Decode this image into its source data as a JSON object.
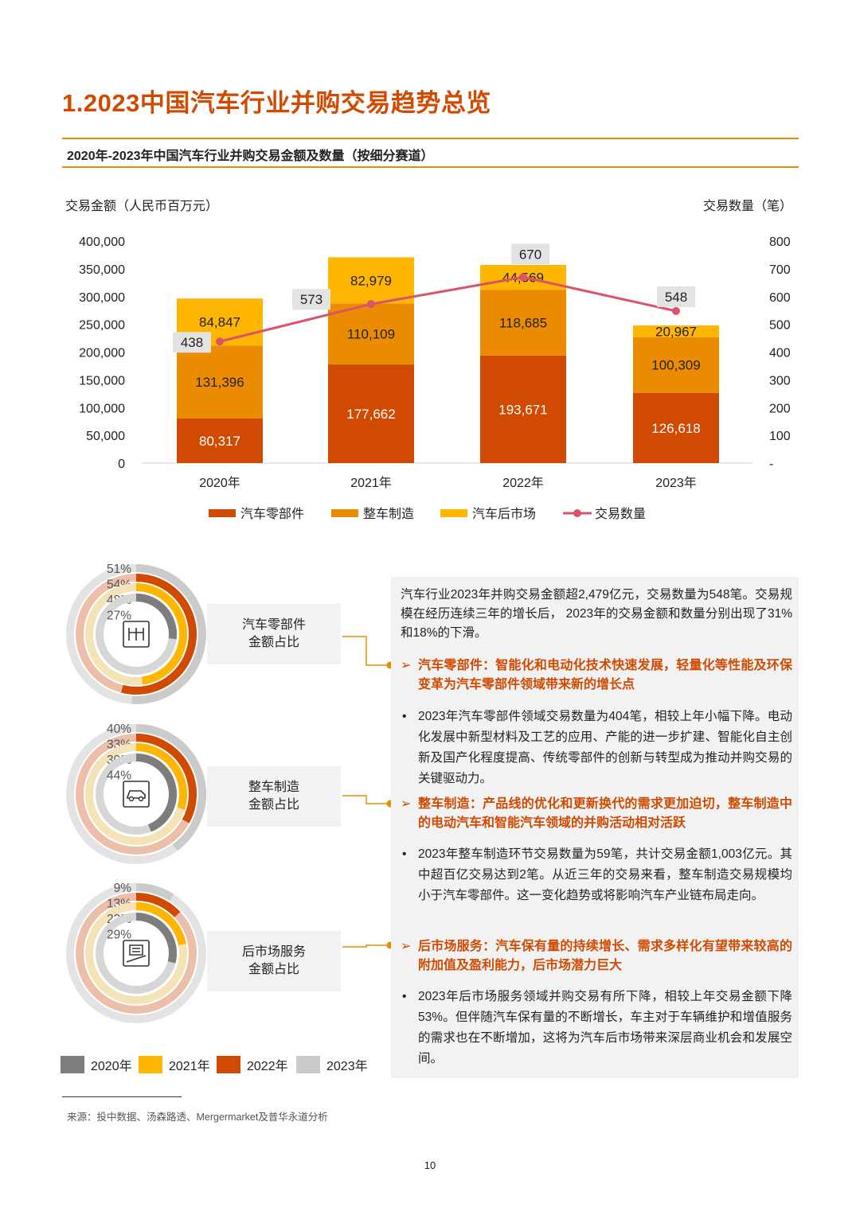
{
  "page": {
    "title": "1.2023中国汽车行业并购交易趋势总览",
    "subtitle": "2020年-2023年中国汽车行业并购交易金额及数量（按细分赛道）",
    "source": "来源：投中数据、汤森路透、Mergermarket及普华永道分析",
    "page_number": "10"
  },
  "colors": {
    "accent": "#d04a02",
    "rule": "#eb8c00",
    "parts": "#d04a02",
    "vehicle": "#eb8c00",
    "aftermarket": "#ffb600",
    "count_line": "#db536a",
    "y2020": "#7d7d7d",
    "y2021": "#ffb600",
    "y2022": "#d04a02",
    "y2023": "#cbcbcb"
  },
  "chart_data": [
    {
      "type": "bar",
      "stacked": true,
      "title": "2020年-2023年中国汽车行业并购交易金额及数量（按细分赛道）",
      "ylabel": "交易金额（人民币百万元）",
      "y2label": "交易数量（笔）",
      "categories": [
        "2020年",
        "2021年",
        "2022年",
        "2023年"
      ],
      "ylim": [
        0,
        400000
      ],
      "yticks": [
        "400,000",
        "350,000",
        "300,000",
        "250,000",
        "200,000",
        "150,000",
        "100,000",
        "50,000",
        "0"
      ],
      "y2lim": [
        0,
        800
      ],
      "y2ticks": [
        "800",
        "700",
        "600",
        "500",
        "400",
        "300",
        "200",
        "100",
        "-"
      ],
      "series": [
        {
          "name": "汽车零部件",
          "values": [
            80317,
            177662,
            193671,
            126618
          ],
          "labels": [
            "80,317",
            "177,662",
            "193,671",
            "126,618"
          ]
        },
        {
          "name": "整车制造",
          "values": [
            131396,
            110109,
            118685,
            100309
          ],
          "labels": [
            "131,396",
            "110,109",
            "118,685",
            "100,309"
          ]
        },
        {
          "name": "汽车后市场",
          "values": [
            84847,
            82979,
            44569,
            20967
          ],
          "labels": [
            "84,847",
            "82,979",
            "44,569",
            "20,967"
          ]
        },
        {
          "name": "交易数量",
          "type": "line",
          "axis": "right",
          "values": [
            438,
            573,
            670,
            548
          ],
          "labels": [
            "438",
            "573",
            "670",
            "548"
          ]
        }
      ],
      "legend": [
        "汽车零部件",
        "整车制造",
        "汽车后市场",
        "交易数量"
      ],
      "legend_position": "bottom"
    },
    {
      "type": "pie",
      "variant": "concentric-donut",
      "title": "汽车零部件金额占比",
      "rings": [
        "2023年",
        "2022年",
        "2021年",
        "2020年"
      ],
      "values": [
        51,
        54,
        48,
        27
      ],
      "labels": [
        "51%",
        "54%",
        "48%",
        "27%"
      ]
    },
    {
      "type": "pie",
      "variant": "concentric-donut",
      "title": "整车制造金额占比",
      "rings": [
        "2023年",
        "2022年",
        "2021年",
        "2020年"
      ],
      "values": [
        40,
        33,
        30,
        44
      ],
      "labels": [
        "40%",
        "33%",
        "30%",
        "44%"
      ]
    },
    {
      "type": "pie",
      "variant": "concentric-donut",
      "title": "后市场服务金额占比",
      "rings": [
        "2023年",
        "2022年",
        "2021年",
        "2020年"
      ],
      "values": [
        9,
        13,
        22,
        29
      ],
      "labels": [
        "9%",
        "13%",
        "22%",
        "29%"
      ]
    }
  ],
  "donut_titles": [
    {
      "line1": "汽车零部件",
      "line2": "金额占比"
    },
    {
      "line1": "整车制造",
      "line2": "金额占比"
    },
    {
      "line1": "后市场服务",
      "line2": "金额占比"
    }
  ],
  "donut_legend": [
    "2020年",
    "2021年",
    "2022年",
    "2023年"
  ],
  "text_panel": {
    "intro": "汽车行业2023年并购交易金额超2,479亿元，交易数量为548笔。交易规模在经历连续三年的增长后， 2023年的交易金额和数量分别出现了31%和18%的下滑。",
    "arrow": "➢",
    "bullet": "•",
    "sections": [
      {
        "heading": "汽车零部件：智能化和电动化技术快速发展，轻量化等性能及环保变革为汽车零部件领域带来新的增长点",
        "body": "2023年汽车零部件领域交易数量为404笔，相较上年小幅下降。电动化发展中新型材料及工艺的应用、产能的进一步扩建、智能化自主创新及国产化程度提高、传统零部件的创新与转型成为推动并购交易的关键驱动力。"
      },
      {
        "heading": "整车制造：产品线的优化和更新换代的需求更加迫切，整车制造中的电动汽车和智能汽车领域的并购活动相对活跃",
        "body": "2023年整车制造环节交易数量为59笔，共计交易金额1,003亿元。其中超百亿交易达到2笔。从近三年的交易来看，整车制造交易规模均小于汽车零部件。这一变化趋势或将影响汽车产业链布局走向。"
      },
      {
        "heading": "后市场服务：汽车保有量的持续增长、需求多样化有望带来较高的附加值及盈利能力，后市场潜力巨大",
        "body": "2023年后市场服务领域并购交易有所下降，相较上年交易金额下降53%。但伴随汽车保有量的不断增长，车主对于车辆维护和增值服务的需求也在不断增加，这将为汽车后市场带来深层商业机会和发展空间。"
      }
    ]
  }
}
